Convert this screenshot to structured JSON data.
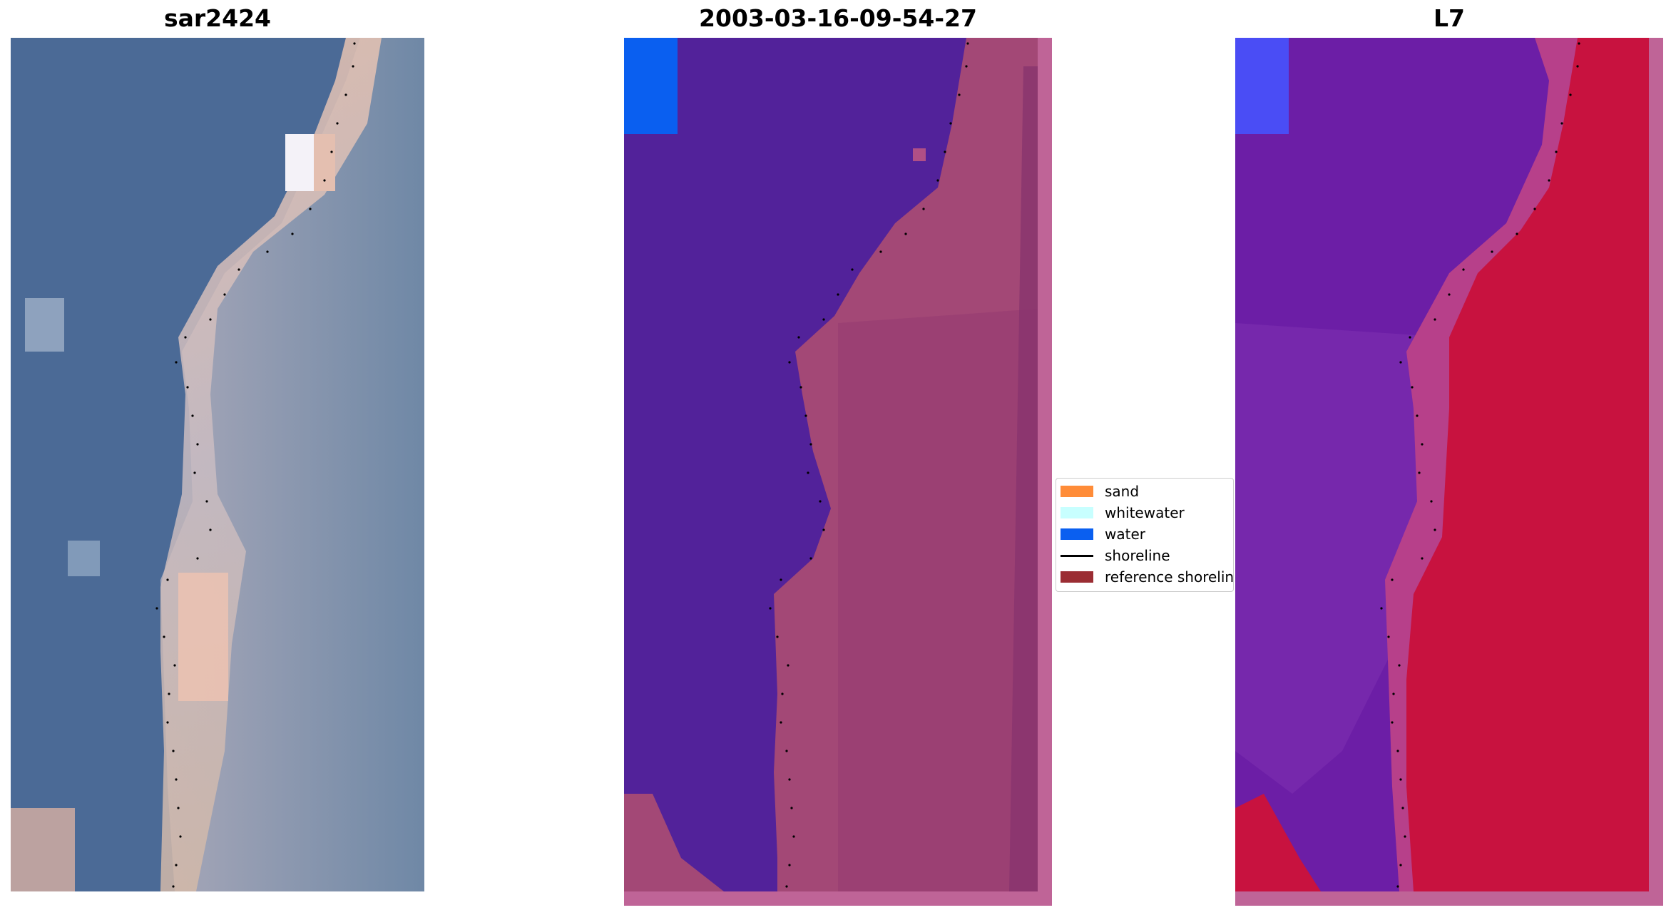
{
  "panels": {
    "left_title": "sar2424",
    "middle_title": "2003-03-16-09-54-27",
    "right_title": "L7"
  },
  "legend": {
    "items": [
      {
        "label": "sand",
        "color": "#ff8c38",
        "kind": "patch"
      },
      {
        "label": "whitewater",
        "color": "#c8ffff",
        "kind": "patch"
      },
      {
        "label": "water",
        "color": "#0a5ff0",
        "kind": "patch"
      },
      {
        "label": "shoreline",
        "color": "#000000",
        "kind": "line"
      },
      {
        "label": "reference shoreline",
        "color": "#9b2d33",
        "kind": "patch"
      }
    ]
  },
  "colors": {
    "classified_water": "#52229a",
    "classified_land": "#b04f86",
    "l7_water": "#6c1ea6",
    "l7_land": "#c8123f",
    "rgb_sea": "#4a6a95",
    "rgb_sand": "#d8b4a8",
    "frame_pink": "#bf6497"
  }
}
